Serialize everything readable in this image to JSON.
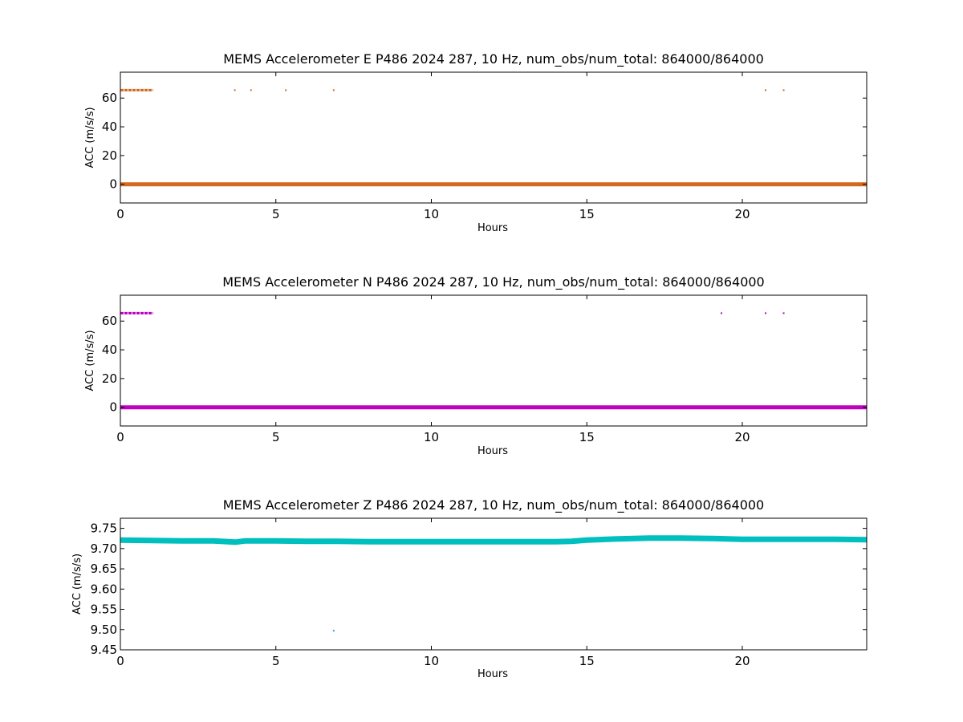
{
  "chart_data": [
    {
      "type": "scatter",
      "title": "MEMS Accelerometer E P486 2024 287, 10 Hz, num_obs/num_total: 864000/864000",
      "xlabel": "Hours",
      "ylabel": "ACC (m/s/s)",
      "xlim": [
        0,
        24
      ],
      "ylim": [
        -13,
        78
      ],
      "xticks": [
        0,
        5,
        10,
        15,
        20
      ],
      "yticks": [
        0,
        20,
        40,
        60
      ],
      "color": "#d2691e",
      "series": [
        {
          "kind": "band",
          "x": [
            0,
            24
          ],
          "y": 0.0
        },
        {
          "kind": "run",
          "x": [
            0.0,
            1.05
          ],
          "y": 65.5
        },
        {
          "kind": "points",
          "x": [
            3.68,
            4.2,
            5.32,
            6.86,
            20.75,
            21.33
          ],
          "y": [
            65.5,
            65.5,
            65.5,
            65.5,
            65.5,
            65.5
          ]
        }
      ]
    },
    {
      "type": "scatter",
      "title": "MEMS Accelerometer N P486 2024 287, 10 Hz, num_obs/num_total: 864000/864000",
      "xlabel": "Hours",
      "ylabel": "ACC (m/s/s)",
      "xlim": [
        0,
        24
      ],
      "ylim": [
        -13,
        78
      ],
      "xticks": [
        0,
        5,
        10,
        15,
        20
      ],
      "yticks": [
        0,
        20,
        40,
        60
      ],
      "color": "#bf00bf",
      "series": [
        {
          "kind": "band",
          "x": [
            0,
            24
          ],
          "y": 0.0
        },
        {
          "kind": "run",
          "x": [
            0.0,
            1.05
          ],
          "y": 65.5
        },
        {
          "kind": "points",
          "x": [
            19.33,
            20.75,
            21.33
          ],
          "y": [
            65.5,
            65.5,
            65.5
          ]
        }
      ]
    },
    {
      "type": "scatter",
      "title": "MEMS Accelerometer Z P486 2024 287, 10 Hz, num_obs/num_total: 864000/864000",
      "xlabel": "Hours",
      "ylabel": "ACC (m/s/s)",
      "xlim": [
        0,
        24
      ],
      "ylim": [
        9.45,
        9.775
      ],
      "xticks": [
        0,
        5,
        10,
        15,
        20
      ],
      "yticks": [
        9.45,
        9.5,
        9.55,
        9.6,
        9.65,
        9.7,
        9.75
      ],
      "color": "#00bfbf",
      "series": [
        {
          "kind": "trace",
          "x": [
            0,
            1,
            2,
            3,
            3.7,
            4,
            5,
            6,
            7,
            8,
            9,
            10,
            11,
            12,
            13,
            14,
            14.5,
            15,
            16,
            17,
            18,
            19,
            20,
            21,
            22,
            23,
            24
          ],
          "y": [
            9.721,
            9.72,
            9.719,
            9.719,
            9.716,
            9.719,
            9.719,
            9.718,
            9.718,
            9.717,
            9.717,
            9.717,
            9.717,
            9.717,
            9.717,
            9.717,
            9.718,
            9.721,
            9.724,
            9.726,
            9.726,
            9.725,
            9.723,
            9.723,
            9.723,
            9.723,
            9.722
          ]
        },
        {
          "kind": "points",
          "x": [
            6.86
          ],
          "y": [
            9.497
          ],
          "color": "#1f9fdf"
        }
      ]
    }
  ]
}
